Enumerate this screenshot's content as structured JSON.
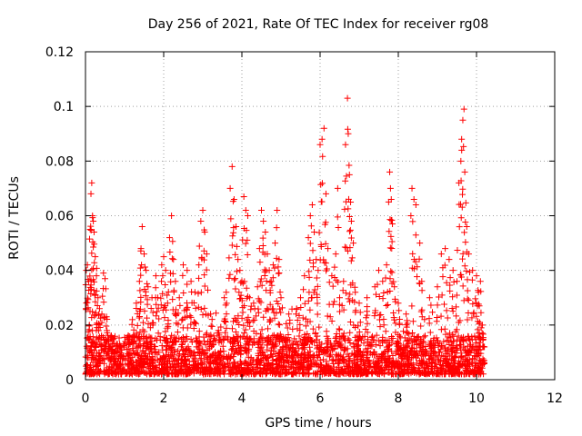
{
  "chart_data": {
    "type": "scatter",
    "title": "Day 256 of 2021, Rate Of TEC Index for receiver rg08",
    "xlabel": "GPS time / hours",
    "ylabel": "ROTI / TECUs",
    "xlim": [
      0,
      12
    ],
    "ylim": [
      0,
      0.12
    ],
    "x_ticks": [
      0,
      2,
      4,
      6,
      8,
      10,
      12
    ],
    "x_tick_labels": [
      "0",
      "2",
      "4",
      "6",
      "8",
      "10",
      "12"
    ],
    "y_ticks": [
      0,
      0.02,
      0.04,
      0.06,
      0.08,
      0.1,
      0.12
    ],
    "y_tick_labels": [
      "0",
      "0.02",
      "0.04",
      "0.06",
      "0.08",
      "0.1",
      "0.12"
    ],
    "grid": true,
    "marker": "+",
    "marker_color": "#ff0000",
    "series": [
      {
        "name": "ROTI",
        "points": [
          [
            0.02,
            0.04
          ],
          [
            0.05,
            0.042
          ],
          [
            0.08,
            0.036
          ],
          [
            0.1,
            0.02
          ],
          [
            0.12,
            0.055
          ],
          [
            0.14,
            0.068
          ],
          [
            0.16,
            0.072
          ],
          [
            0.18,
            0.06
          ],
          [
            0.2,
            0.058
          ],
          [
            0.22,
            0.054
          ],
          [
            0.25,
            0.045
          ],
          [
            0.28,
            0.038
          ],
          [
            0.32,
            0.03
          ],
          [
            0.36,
            0.026
          ],
          [
            0.42,
            0.024
          ],
          [
            0.46,
            0.039
          ],
          [
            0.5,
            0.037
          ],
          [
            0.55,
            0.018
          ],
          [
            0.62,
            0.012
          ],
          [
            0.7,
            0.01
          ],
          [
            0.9,
            0.012
          ],
          [
            1.1,
            0.016
          ],
          [
            1.2,
            0.022
          ],
          [
            1.3,
            0.028
          ],
          [
            1.38,
            0.036
          ],
          [
            1.42,
            0.048
          ],
          [
            1.45,
            0.056
          ],
          [
            1.5,
            0.046
          ],
          [
            1.55,
            0.04
          ],
          [
            1.6,
            0.034
          ],
          [
            1.7,
            0.03
          ],
          [
            1.8,
            0.038
          ],
          [
            1.85,
            0.03
          ],
          [
            1.95,
            0.042
          ],
          [
            2.0,
            0.045
          ],
          [
            2.05,
            0.04
          ],
          [
            2.1,
            0.028
          ],
          [
            2.15,
            0.052
          ],
          [
            2.2,
            0.06
          ],
          [
            2.25,
            0.044
          ],
          [
            2.3,
            0.036
          ],
          [
            2.4,
            0.03
          ],
          [
            2.5,
            0.042
          ],
          [
            2.6,
            0.04
          ],
          [
            2.7,
            0.036
          ],
          [
            2.8,
            0.032
          ],
          [
            2.9,
            0.042
          ],
          [
            2.95,
            0.058
          ],
          [
            3.0,
            0.062
          ],
          [
            3.05,
            0.054
          ],
          [
            3.1,
            0.046
          ],
          [
            3.2,
            0.024
          ],
          [
            3.4,
            0.018
          ],
          [
            3.55,
            0.03
          ],
          [
            3.6,
            0.032
          ],
          [
            3.7,
            0.07
          ],
          [
            3.75,
            0.078
          ],
          [
            3.8,
            0.066
          ],
          [
            3.85,
            0.056
          ],
          [
            3.9,
            0.044
          ],
          [
            3.95,
            0.04
          ],
          [
            4.0,
            0.036
          ],
          [
            4.05,
            0.067
          ],
          [
            4.1,
            0.062
          ],
          [
            4.15,
            0.06
          ],
          [
            4.2,
            0.03
          ],
          [
            4.3,
            0.028
          ],
          [
            4.4,
            0.034
          ],
          [
            4.45,
            0.048
          ],
          [
            4.5,
            0.062
          ],
          [
            4.55,
            0.058
          ],
          [
            4.6,
            0.054
          ],
          [
            4.65,
            0.046
          ],
          [
            4.7,
            0.04
          ],
          [
            4.75,
            0.036
          ],
          [
            4.8,
            0.042
          ],
          [
            4.85,
            0.05
          ],
          [
            4.9,
            0.062
          ],
          [
            4.95,
            0.044
          ],
          [
            5.0,
            0.03
          ],
          [
            5.2,
            0.024
          ],
          [
            5.4,
            0.026
          ],
          [
            5.5,
            0.03
          ],
          [
            5.6,
            0.038
          ],
          [
            5.7,
            0.052
          ],
          [
            5.75,
            0.06
          ],
          [
            5.8,
            0.064
          ],
          [
            5.85,
            0.054
          ],
          [
            5.9,
            0.044
          ],
          [
            5.95,
            0.04
          ],
          [
            6.0,
            0.086
          ],
          [
            6.05,
            0.088
          ],
          [
            6.1,
            0.092
          ],
          [
            6.15,
            0.068
          ],
          [
            6.2,
            0.048
          ],
          [
            6.3,
            0.038
          ],
          [
            6.4,
            0.046
          ],
          [
            6.45,
            0.07
          ],
          [
            6.5,
            0.03
          ],
          [
            6.6,
            0.036
          ],
          [
            6.65,
            0.086
          ],
          [
            6.7,
            0.103
          ],
          [
            6.72,
            0.09
          ],
          [
            6.75,
            0.075
          ],
          [
            6.78,
            0.065
          ],
          [
            6.8,
            0.058
          ],
          [
            6.85,
            0.05
          ],
          [
            6.9,
            0.032
          ],
          [
            7.0,
            0.028
          ],
          [
            7.2,
            0.03
          ],
          [
            7.4,
            0.034
          ],
          [
            7.5,
            0.04
          ],
          [
            7.6,
            0.036
          ],
          [
            7.7,
            0.042
          ],
          [
            7.78,
            0.076
          ],
          [
            7.8,
            0.07
          ],
          [
            7.82,
            0.066
          ],
          [
            7.85,
            0.057
          ],
          [
            7.9,
            0.034
          ],
          [
            8.0,
            0.028
          ],
          [
            8.2,
            0.024
          ],
          [
            8.35,
            0.07
          ],
          [
            8.4,
            0.066
          ],
          [
            8.45,
            0.064
          ],
          [
            8.55,
            0.05
          ],
          [
            8.6,
            0.036
          ],
          [
            8.8,
            0.03
          ],
          [
            9.0,
            0.034
          ],
          [
            9.1,
            0.046
          ],
          [
            9.2,
            0.048
          ],
          [
            9.3,
            0.044
          ],
          [
            9.4,
            0.04
          ],
          [
            9.5,
            0.036
          ],
          [
            9.55,
            0.072
          ],
          [
            9.6,
            0.08
          ],
          [
            9.62,
            0.088
          ],
          [
            9.65,
            0.095
          ],
          [
            9.68,
            0.099
          ],
          [
            9.7,
            0.076
          ],
          [
            9.75,
            0.056
          ],
          [
            9.8,
            0.046
          ],
          [
            9.9,
            0.04
          ],
          [
            10.0,
            0.038
          ],
          [
            10.05,
            0.032
          ],
          [
            10.1,
            0.036
          ],
          [
            10.15,
            0.02
          ],
          [
            10.18,
            0.012
          ]
        ]
      }
    ],
    "dense_band": {
      "x_start": 0.0,
      "x_end": 10.2,
      "y_floor": 0.002,
      "y_typical_max": 0.016
    }
  }
}
